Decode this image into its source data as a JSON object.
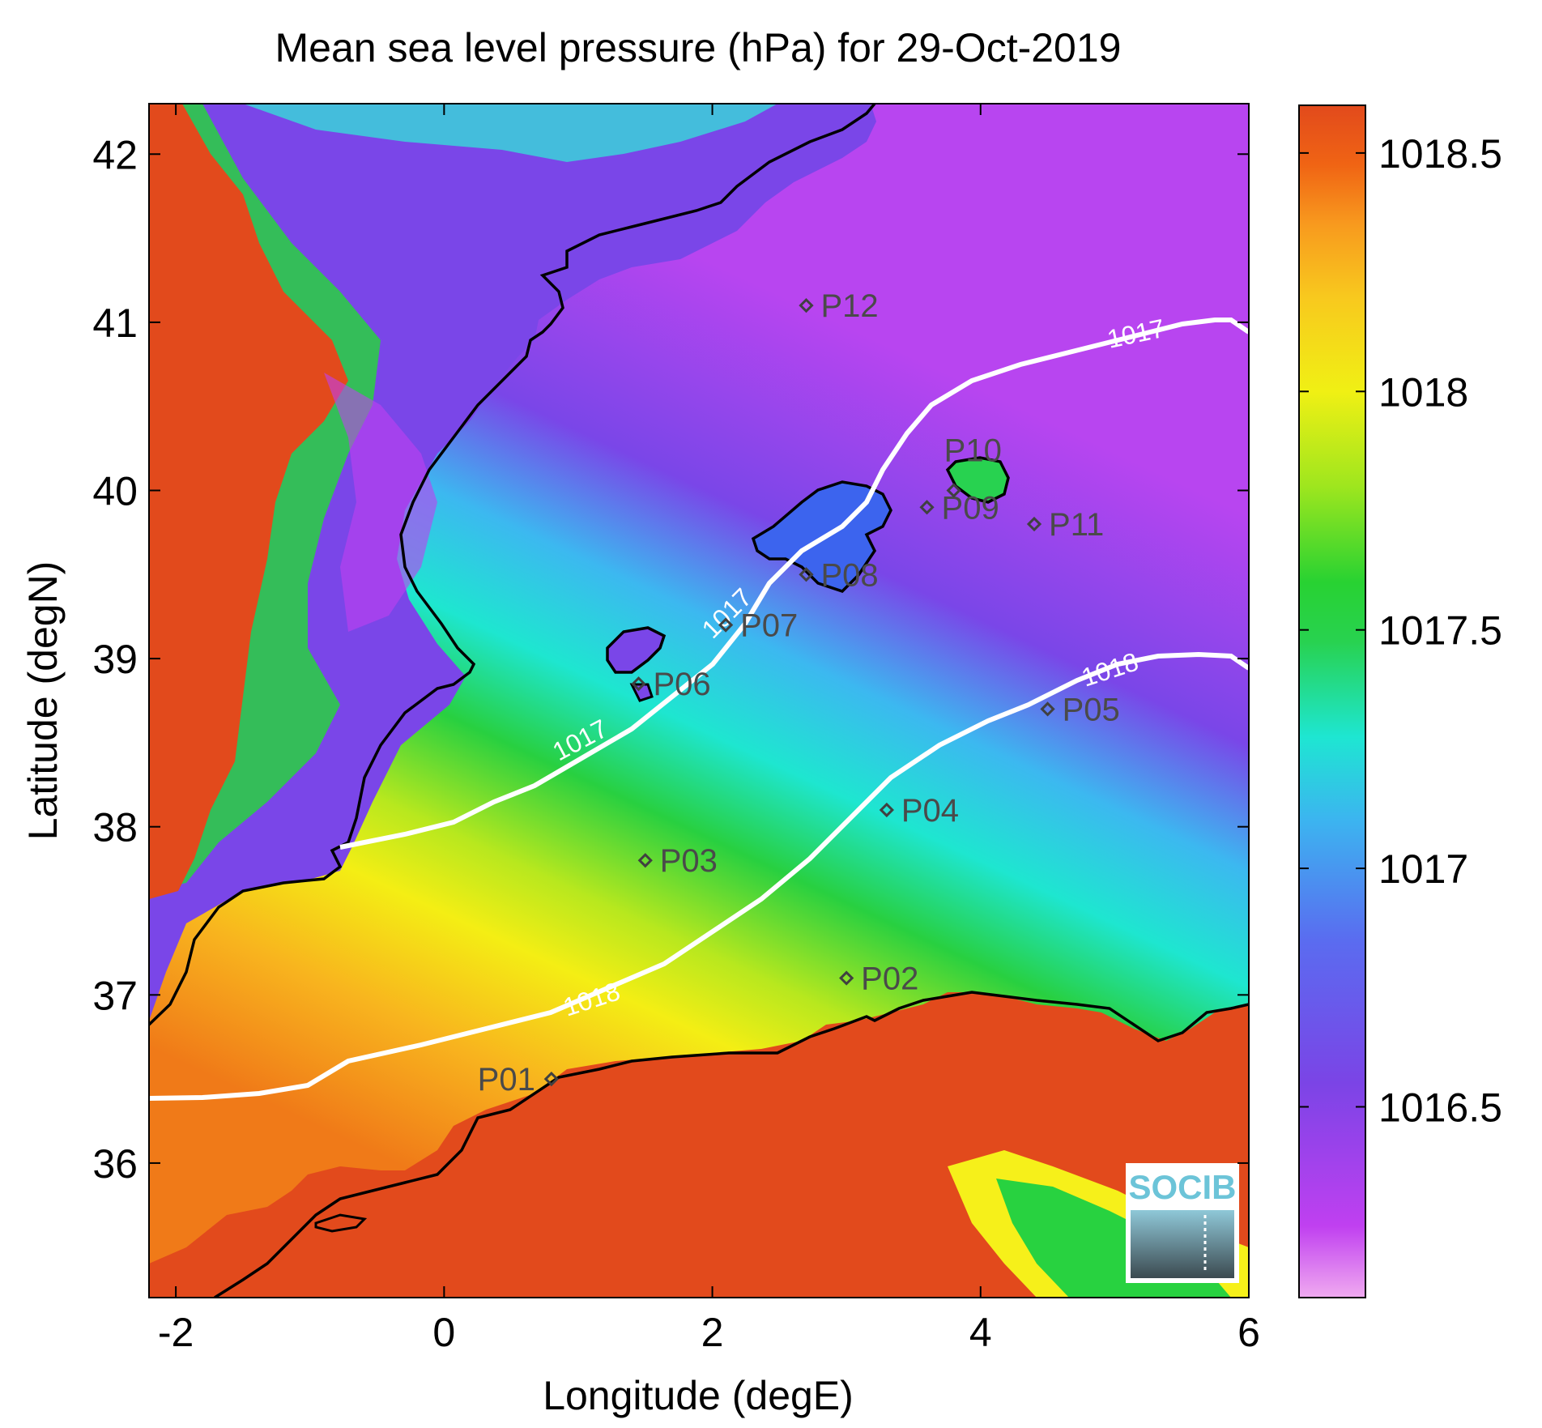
{
  "figure": {
    "title": "Mean sea level pressure (hPa) for 29-Oct-2019",
    "xlabel": "Longitude (degE)",
    "ylabel": "Latitude (degN)",
    "logo_text": "SOCIB"
  },
  "axes": {
    "xlim": [
      -2.2,
      6.0
    ],
    "ylim": [
      35.2,
      42.3
    ],
    "xticks": [
      -2,
      0,
      2,
      4,
      6
    ],
    "xtick_labels": [
      "-2",
      "0",
      "2",
      "4",
      "6"
    ],
    "yticks": [
      36,
      37,
      38,
      39,
      40,
      41,
      42
    ],
    "ytick_labels": [
      "36",
      "37",
      "38",
      "39",
      "40",
      "41",
      "42"
    ]
  },
  "colorbar": {
    "range": [
      1016.1,
      1018.6
    ],
    "ticks": [
      1016.5,
      1017,
      1017.5,
      1018,
      1018.5
    ],
    "tick_labels": [
      "1016.5",
      "1017",
      "1017.5",
      "1018",
      "1018.5"
    ],
    "colors": [
      "#f0aaf0",
      "#c040f0",
      "#7b44e6",
      "#5a6cf0",
      "#3cb4f0",
      "#1ee6d2",
      "#28d250",
      "#28d232",
      "#9ee61e",
      "#f0f014",
      "#f8c81e",
      "#f89a1e",
      "#f06414",
      "#e24a1c"
    ]
  },
  "chart_data": {
    "type": "heatmap",
    "title": "Mean sea level pressure (hPa) for 29-Oct-2019",
    "xlabel": "Longitude (degE)",
    "ylabel": "Latitude (degN)",
    "contours": [
      {
        "level": "1017",
        "label": "1017"
      },
      {
        "level": "1018",
        "label": "1018"
      }
    ],
    "stations": [
      {
        "name": "P01",
        "lon": 0.8,
        "lat": 36.5
      },
      {
        "name": "P02",
        "lon": 3.0,
        "lat": 37.1
      },
      {
        "name": "P03",
        "lon": 1.5,
        "lat": 37.8
      },
      {
        "name": "P04",
        "lon": 3.3,
        "lat": 38.1
      },
      {
        "name": "P05",
        "lon": 4.5,
        "lat": 38.7
      },
      {
        "name": "P06",
        "lon": 1.45,
        "lat": 38.85
      },
      {
        "name": "P07",
        "lon": 2.1,
        "lat": 39.2
      },
      {
        "name": "P08",
        "lon": 2.7,
        "lat": 39.5
      },
      {
        "name": "P09",
        "lon": 3.6,
        "lat": 39.9
      },
      {
        "name": "P10",
        "lon": 3.8,
        "lat": 40.0
      },
      {
        "name": "P11",
        "lon": 4.4,
        "lat": 39.8
      },
      {
        "name": "P12",
        "lon": 2.7,
        "lat": 41.1
      }
    ]
  }
}
